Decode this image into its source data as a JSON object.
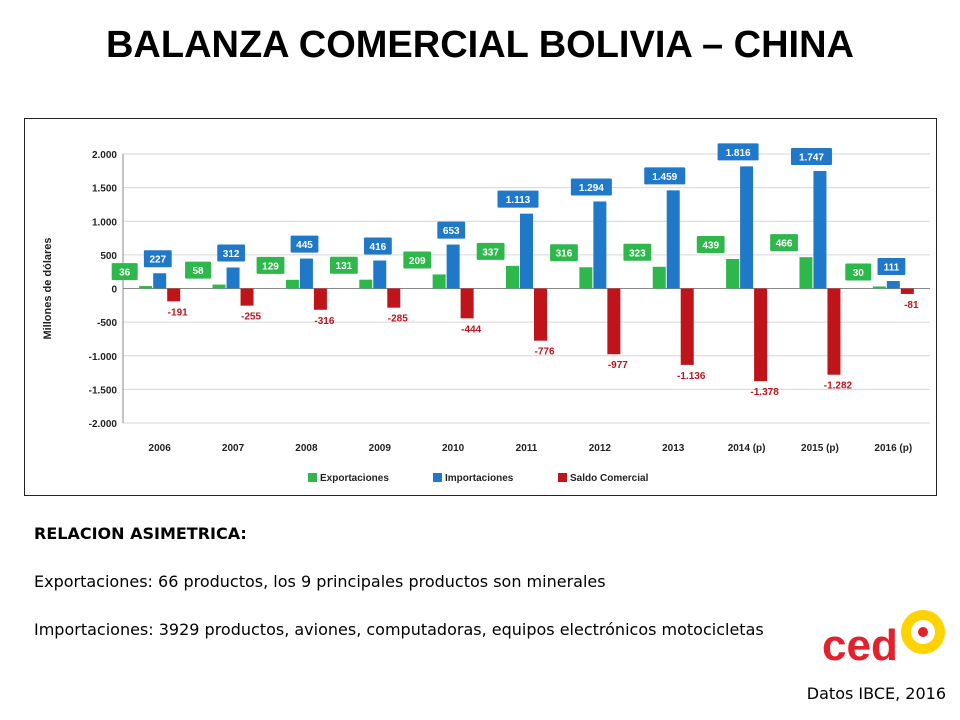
{
  "slide": {
    "title": "BALANZA COMERCIAL BOLIVIA – CHINA",
    "notes_heading": "RELACION ASIMETRICA:",
    "notes_line1": "Exportaciones: 66 productos, los 9 principales productos son minerales",
    "notes_line2": "Importaciones: 3929 productos, aviones, computadoras, equipos electrónicos motocicletas",
    "source": "Datos IBCE, 2016",
    "logo_text": "ced"
  },
  "chart_data": {
    "type": "bar",
    "ylabel": "Millones de dólares",
    "ylim": [
      -2000,
      2000
    ],
    "yticks": [
      2000,
      1500,
      1000,
      500,
      0,
      -500,
      -1000,
      -1500,
      -2000
    ],
    "ytick_labels": [
      "2.000",
      "1.500",
      "1.000",
      "500",
      "0",
      "-500",
      "-1.000",
      "-1.500",
      "-2.000"
    ],
    "categories": [
      "2006",
      "2007",
      "2008",
      "2009",
      "2010",
      "2011",
      "2012",
      "2013",
      "2014 (p)",
      "2015 (p)",
      "2016 (p)"
    ],
    "series": [
      {
        "name": "Exportaciones",
        "color": "#2eb84b",
        "values": [
          36,
          58,
          129,
          131,
          209,
          337,
          316,
          323,
          439,
          466,
          30
        ],
        "labels": [
          "36",
          "58",
          "129",
          "131",
          "209",
          "337",
          "316",
          "323",
          "439",
          "466",
          "30"
        ]
      },
      {
        "name": "Importaciones",
        "color": "#1f78c8",
        "values": [
          227,
          312,
          445,
          416,
          653,
          1113,
          1294,
          1459,
          1816,
          1747,
          111
        ],
        "labels": [
          "227",
          "312",
          "445",
          "416",
          "653",
          "1.113",
          "1.294",
          "1.459",
          "1.816",
          "1.747",
          "111"
        ]
      },
      {
        "name": "Saldo Comercial",
        "color": "#c0141b",
        "values": [
          -191,
          -255,
          -316,
          -285,
          -444,
          -776,
          -977,
          -1136,
          -1378,
          -1282,
          -81
        ],
        "labels": [
          "-191",
          "-255",
          "-316",
          "-285",
          "-444",
          "-776",
          "-977",
          "-1.136",
          "-1.378",
          "-1.282",
          "-81"
        ]
      }
    ],
    "legend_position": "bottom",
    "grid": true
  }
}
